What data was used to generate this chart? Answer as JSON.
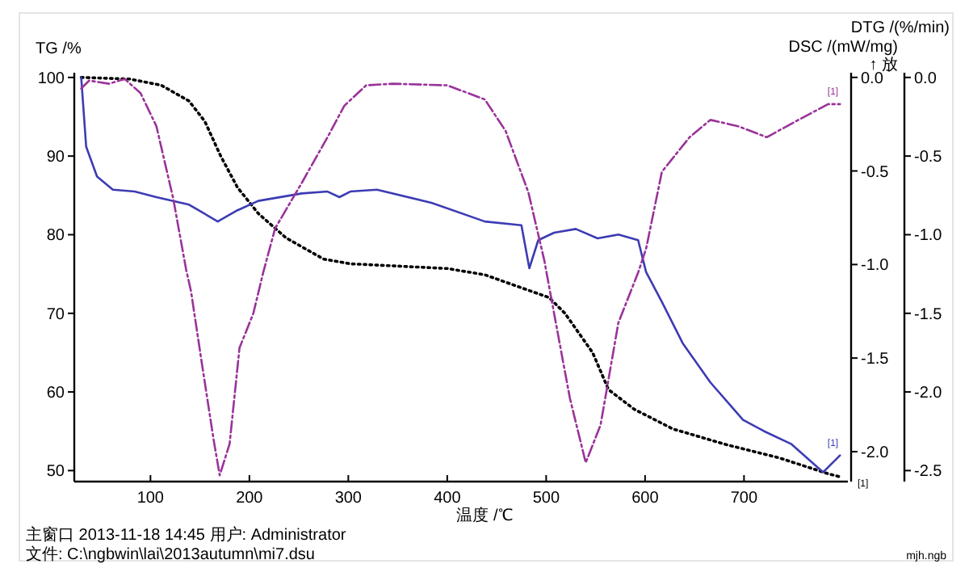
{
  "chart_data": {
    "type": "line",
    "xlabel": "温度 /℃",
    "ylabel": "TG /%",
    "y2label": "DSC /(mW/mg)",
    "y3label": "DTG /(%/min)",
    "xlim": [
      23,
      805
    ],
    "xticks": [
      100,
      200,
      300,
      400,
      500,
      600,
      700
    ],
    "ylim": [
      48.6,
      100.6
    ],
    "yticks": [
      50,
      60,
      70,
      80,
      90,
      100
    ],
    "y2lim": [
      -2.16,
      0.025
    ],
    "y2ticks": [
      {
        "value": 0,
        "label": "0.0"
      },
      -0.5,
      {
        "value": -1,
        "label": "-1.0"
      },
      -1.5,
      {
        "value": -2,
        "label": "-2.0"
      }
    ],
    "y3lim": [
      -2.57,
      0.03
    ],
    "y3ticks": [
      {
        "value": 0,
        "label": "0.0"
      },
      -0.5,
      {
        "value": -1,
        "label": "-1.0"
      },
      -1.5,
      {
        "value": -2,
        "label": "-2.0"
      },
      -2.5
    ],
    "annotations": [
      "↑ 放",
      "主窗口  2013-11-18 14:45   用户: Administrator",
      "文件:  C:\\ngbwin\\lai\\2013autumn\\mi7.dsu",
      "mjh.ngb"
    ],
    "series": [
      {
        "name": "[1]",
        "color": "#000000",
        "line_style": "dotted",
        "x": [
          30,
          79,
          111,
          139,
          155,
          171,
          188,
          209,
          237,
          275,
          302,
          400,
          438,
          503,
          519,
          547,
          563,
          589,
          628,
          682,
          736,
          785,
          797
        ],
        "values": [
          100,
          99.8,
          99,
          97,
          94.4,
          90,
          86,
          82.7,
          79.6,
          76.9,
          76.3,
          75.7,
          74.9,
          72,
          70,
          65,
          60.3,
          57.8,
          55.3,
          53.3,
          51.6,
          49.6,
          49.2
        ]
      },
      {
        "name": "[1]",
        "color": "#3c3cb4",
        "line_style": "solid",
        "axis": "y2",
        "x": [
          30,
          35,
          46,
          62,
          84,
          106,
          139,
          168,
          188,
          209,
          253,
          279,
          291,
          302,
          329,
          384,
          438,
          475,
          483,
          492,
          508,
          530,
          552,
          573,
          593,
          601,
          617,
          638,
          666,
          699,
          720,
          748,
          780,
          797
        ],
        "values": [
          0,
          -0.37,
          -0.53,
          -0.6,
          -0.61,
          -0.64,
          -0.68,
          -0.77,
          -0.71,
          -0.66,
          -0.62,
          -0.61,
          -0.64,
          -0.61,
          -0.6,
          -0.67,
          -0.77,
          -0.79,
          -1.02,
          -0.87,
          -0.83,
          -0.81,
          -0.86,
          -0.84,
          -0.87,
          -1.04,
          -1.2,
          -1.42,
          -1.63,
          -1.83,
          -1.89,
          -1.96,
          -2.11,
          -2.02
        ]
      },
      {
        "name": "[1]",
        "color": "#993399",
        "line_style": "dashed",
        "axis": "y3",
        "x": [
          30,
          38,
          58,
          74,
          90,
          106,
          123,
          136,
          141,
          152,
          164,
          170,
          180,
          190,
          204,
          214,
          226,
          253,
          279,
          296,
          318,
          345,
          400,
          438,
          459,
          482,
          498,
          508,
          524,
          540,
          555,
          573,
          593,
          601,
          617,
          645,
          666,
          694,
          723,
          752,
          785,
          797
        ],
        "values": [
          -0.07,
          -0.02,
          -0.04,
          -0.01,
          -0.1,
          -0.31,
          -0.77,
          -1.22,
          -1.36,
          -1.82,
          -2.31,
          -2.53,
          -2.33,
          -1.72,
          -1.5,
          -1.24,
          -0.96,
          -0.67,
          -0.38,
          -0.18,
          -0.05,
          -0.04,
          -0.05,
          -0.14,
          -0.34,
          -0.73,
          -1.16,
          -1.5,
          -2.04,
          -2.45,
          -2.21,
          -1.56,
          -1.24,
          -1.09,
          -0.6,
          -0.38,
          -0.27,
          -0.31,
          -0.38,
          -0.28,
          -0.17,
          -0.17
        ]
      }
    ]
  }
}
